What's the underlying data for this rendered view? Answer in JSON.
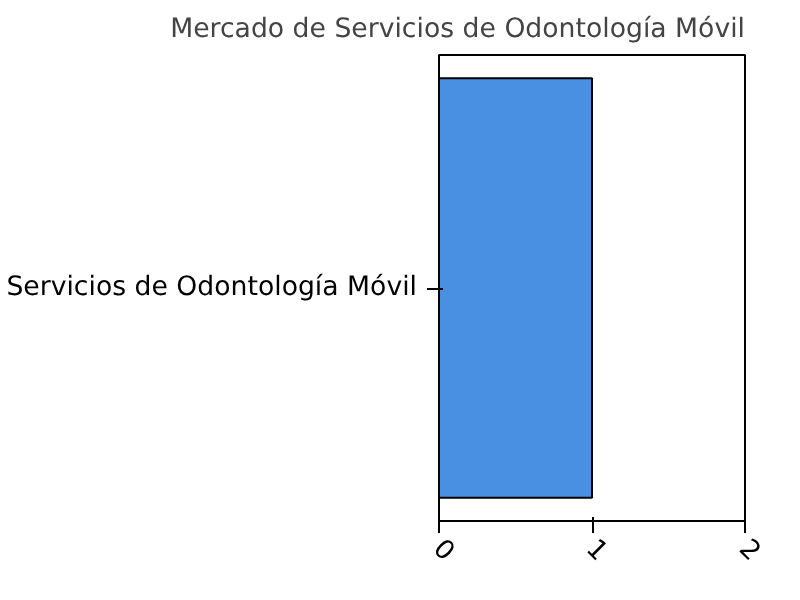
{
  "chart_data": {
    "type": "bar",
    "orientation": "horizontal",
    "title": "Mercado de Servicios de Odontología Móvil",
    "categories": [
      "Servicios de Odontología Móvil"
    ],
    "values": [
      1
    ],
    "color": "#4a90e2",
    "xlim": [
      0,
      2
    ],
    "xticks": [
      0,
      1,
      2
    ],
    "grid": false
  }
}
